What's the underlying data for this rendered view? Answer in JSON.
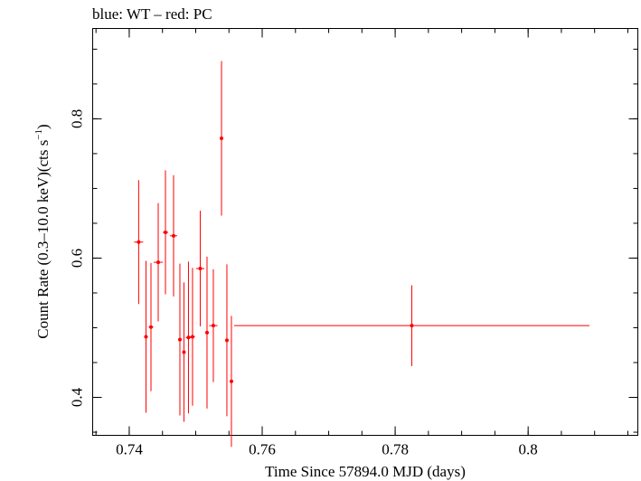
{
  "chart_data": {
    "type": "scatter",
    "title": "blue: WT – red: PC",
    "xlabel": "Time Since 57894.0 MJD (days)",
    "ylabel_main": "Count Rate (0.3–10.0 keV)(cts s",
    "ylabel_sup": "−1",
    "ylabel_end": ")",
    "xlim": [
      0.7345,
      0.8165
    ],
    "ylim": [
      0.3455,
      0.9297
    ],
    "x_ticks": [
      {
        "value": 0.74,
        "label": "0.74"
      },
      {
        "value": 0.76,
        "label": "0.76"
      },
      {
        "value": 0.78,
        "label": "0.78"
      },
      {
        "value": 0.8,
        "label": "0.8"
      }
    ],
    "y_ticks": [
      {
        "value": 0.4,
        "label": "0.4"
      },
      {
        "value": 0.6,
        "label": "0.6"
      },
      {
        "value": 0.8,
        "label": "0.8"
      }
    ],
    "x_minor_step": 0.005,
    "y_minor_step": 0.05,
    "grid": false,
    "series": [
      {
        "color": "#ff0000",
        "points": [
          {
            "x": 0.74142,
            "xerr": 0.00068,
            "y": 0.623,
            "yerr": 0.089
          },
          {
            "x": 0.74252,
            "xerr": 0.00028,
            "y": 0.487,
            "yerr": 0.109
          },
          {
            "x": 0.74327,
            "xerr": 0.00035,
            "y": 0.501,
            "yerr": 0.092
          },
          {
            "x": 0.74436,
            "xerr": 0.00068,
            "y": 0.594,
            "yerr": 0.085
          },
          {
            "x": 0.74545,
            "xerr": 0.00041,
            "y": 0.637,
            "yerr": 0.089
          },
          {
            "x": 0.74667,
            "xerr": 0.00055,
            "y": 0.632,
            "yerr": 0.087
          },
          {
            "x": 0.74762,
            "xerr": 0.00021,
            "y": 0.483,
            "yerr": 0.109
          },
          {
            "x": 0.74823,
            "xerr": 0.00021,
            "y": 0.465,
            "yerr": 0.1
          },
          {
            "x": 0.74891,
            "xerr": 0.00041,
            "y": 0.486,
            "yerr": 0.109
          },
          {
            "x": 0.74952,
            "xerr": 0.00035,
            "y": 0.487,
            "yerr": 0.099
          },
          {
            "x": 0.75068,
            "xerr": 0.00062,
            "y": 0.585,
            "yerr": 0.083
          },
          {
            "x": 0.7517,
            "xerr": 0.00021,
            "y": 0.493,
            "yerr": 0.109
          },
          {
            "x": 0.75265,
            "xerr": 0.00062,
            "y": 0.503,
            "yerr": 0.081
          },
          {
            "x": 0.75388,
            "xerr": 0.00021,
            "y": 0.772,
            "yerr": 0.111
          },
          {
            "x": 0.75469,
            "xerr": 0.00021,
            "y": 0.482,
            "yerr": 0.109
          },
          {
            "x": 0.75537,
            "xerr": 0.00014,
            "y": 0.423,
            "yerr": 0.094
          },
          {
            "x": 0.7825,
            "xerr": 0.02672,
            "y": 0.503,
            "yerr": 0.058
          }
        ]
      }
    ]
  }
}
